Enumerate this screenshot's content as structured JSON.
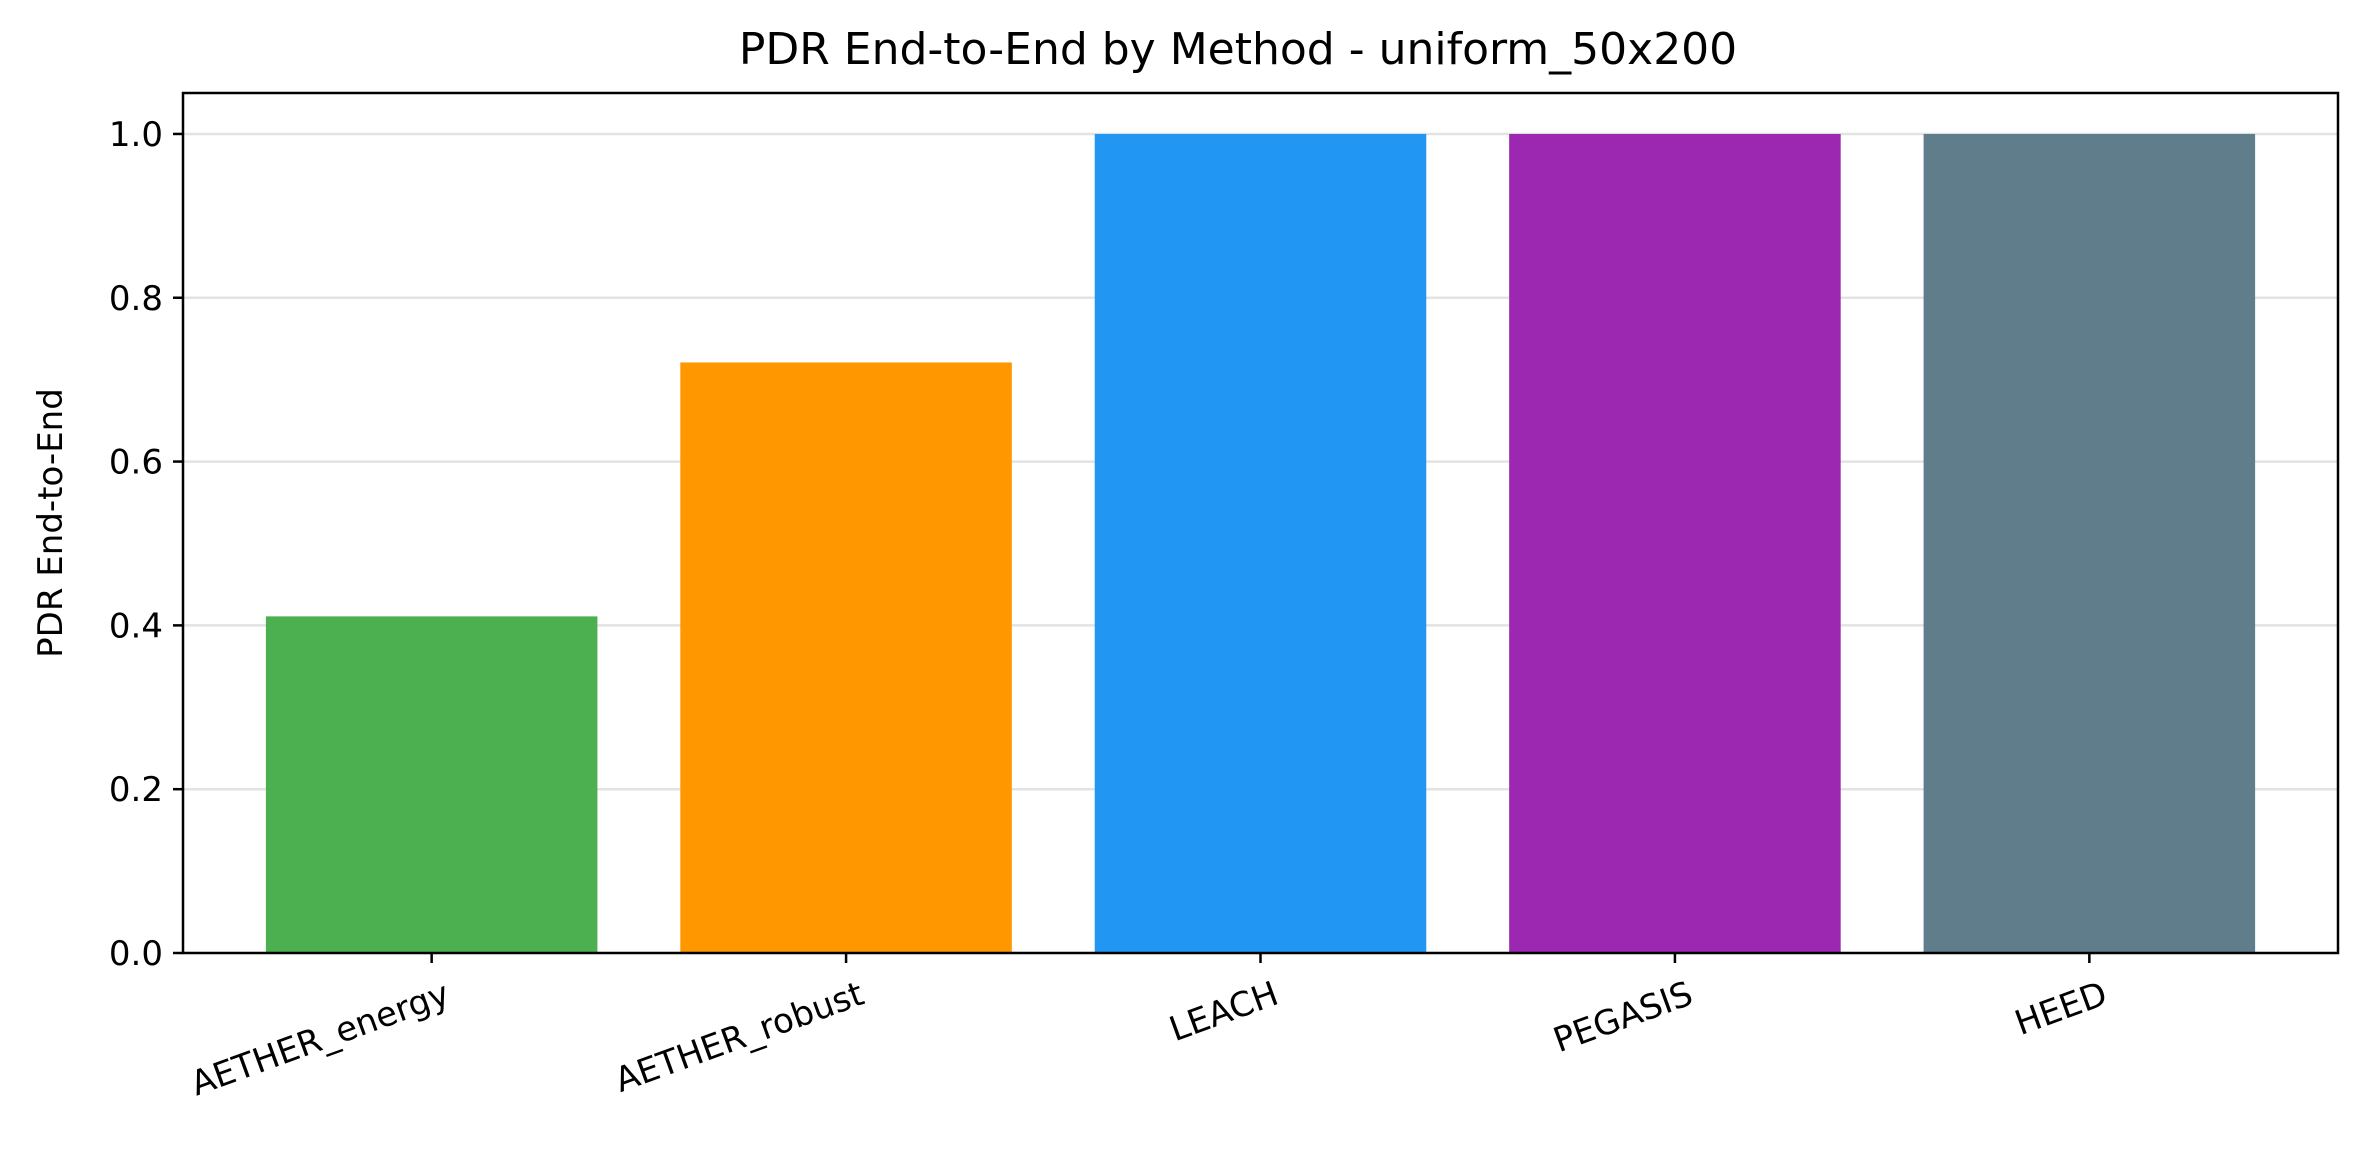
{
  "chart_data": {
    "type": "bar",
    "title": "PDR End-to-End by Method - uniform_50x200",
    "xlabel": "",
    "ylabel": "PDR End-to-End",
    "categories": [
      "AETHER_energy",
      "AETHER_robust",
      "LEACH",
      "PEGASIS",
      "HEED"
    ],
    "values": [
      0.411,
      0.721,
      1.0,
      1.0,
      1.0
    ],
    "colors": [
      "#4caf50",
      "#ff9800",
      "#2196f3",
      "#9c27b0",
      "#607d8b"
    ],
    "ylim": [
      0,
      1.05
    ],
    "yticks": [
      0.0,
      0.2,
      0.4,
      0.6,
      0.8,
      1.0
    ],
    "ytick_labels": [
      "0.0",
      "0.2",
      "0.4",
      "0.6",
      "0.8",
      "1.0"
    ],
    "grid": "y-axis only",
    "legend": "none",
    "xtick_rotation_deg": 20
  }
}
